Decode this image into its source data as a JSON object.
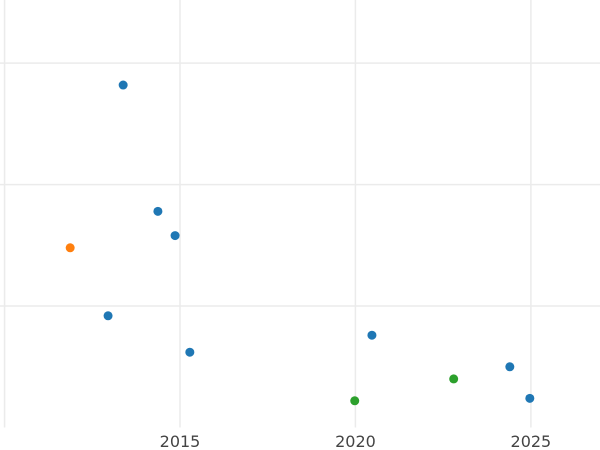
{
  "chart_data": {
    "type": "scatter",
    "title": "",
    "xlabel": "",
    "ylabel": "",
    "xlim": [
      2009.87,
      2026.97
    ],
    "ylim": [
      0,
      3.52
    ],
    "x_ticks": [
      2010,
      2015,
      2020,
      2025
    ],
    "x_tick_labels": [
      "",
      "2015",
      "2020",
      "2025"
    ],
    "y_ticks": [
      1,
      2,
      3
    ],
    "y_tick_labels": [
      "",
      "",
      ""
    ],
    "grid": true,
    "legend": "none",
    "colors": {
      "blue": "#1f77b4",
      "orange": "#ff7f0e",
      "green": "#2ca02c"
    },
    "points": [
      {
        "x": 2013.38,
        "y": 2.82,
        "color": "blue"
      },
      {
        "x": 2014.37,
        "y": 1.78,
        "color": "blue"
      },
      {
        "x": 2014.86,
        "y": 1.58,
        "color": "blue"
      },
      {
        "x": 2011.87,
        "y": 1.48,
        "color": "orange"
      },
      {
        "x": 2012.95,
        "y": 0.92,
        "color": "blue"
      },
      {
        "x": 2015.28,
        "y": 0.62,
        "color": "blue"
      },
      {
        "x": 2020.47,
        "y": 0.76,
        "color": "blue"
      },
      {
        "x": 2024.4,
        "y": 0.5,
        "color": "blue"
      },
      {
        "x": 2022.8,
        "y": 0.4,
        "color": "green"
      },
      {
        "x": 2019.98,
        "y": 0.22,
        "color": "green"
      },
      {
        "x": 2024.97,
        "y": 0.24,
        "color": "blue"
      }
    ]
  }
}
